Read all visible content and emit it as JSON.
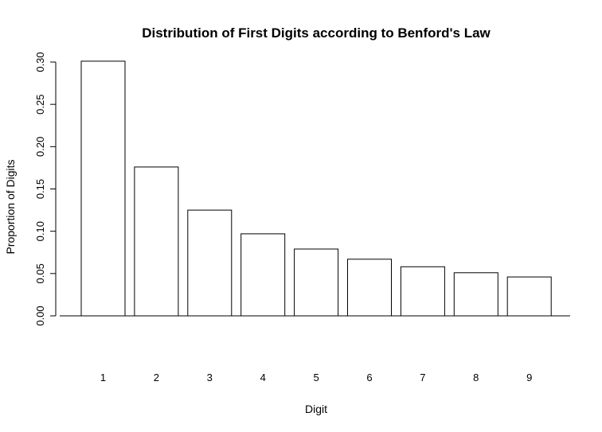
{
  "chart_data": {
    "type": "bar",
    "title": "Distribution of First Digits according to Benford's Law",
    "xlabel": "Digit",
    "ylabel": "Proportion of Digits",
    "categories": [
      "1",
      "2",
      "3",
      "4",
      "5",
      "6",
      "7",
      "8",
      "9"
    ],
    "values": [
      0.301,
      0.176,
      0.125,
      0.097,
      0.079,
      0.067,
      0.058,
      0.051,
      0.046
    ],
    "ylim": [
      0,
      0.3
    ],
    "yticks": [
      {
        "value": 0.0,
        "label": "0.00"
      },
      {
        "value": 0.05,
        "label": "0.05"
      },
      {
        "value": 0.1,
        "label": "0.10"
      },
      {
        "value": 0.15,
        "label": "0.15"
      },
      {
        "value": 0.2,
        "label": "0.20"
      },
      {
        "value": 0.25,
        "label": "0.25"
      },
      {
        "value": 0.3,
        "label": "0.30"
      }
    ],
    "bar_fill": "#ffffff",
    "bar_stroke": "#000000",
    "grid": false,
    "legend": "none"
  }
}
